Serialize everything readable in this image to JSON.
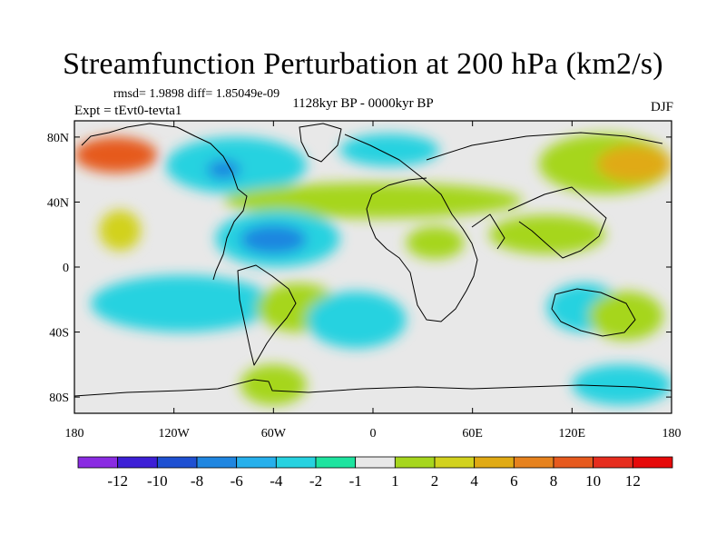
{
  "chart_data": {
    "type": "heatmap",
    "title": "Streamfunction Perturbation at 200 hPa (km2/s)",
    "stats": "rmsd= 1.9898 diff= 1.85049e-09",
    "experiment": "Expt = tEvt0-tevta1",
    "period": "1128kyr BP - 0000kyr BP",
    "season": "DJF",
    "xlim": [
      -180,
      180
    ],
    "ylim": [
      -90,
      90
    ],
    "x_ticks": [
      {
        "value": -180,
        "label": "180"
      },
      {
        "value": -120,
        "label": "120W"
      },
      {
        "value": -60,
        "label": "60W"
      },
      {
        "value": 0,
        "label": "0"
      },
      {
        "value": 60,
        "label": "60E"
      },
      {
        "value": 120,
        "label": "120E"
      },
      {
        "value": 180,
        "label": "180"
      }
    ],
    "y_ticks": [
      {
        "value": 80,
        "label": "80N"
      },
      {
        "value": 40,
        "label": "40N"
      },
      {
        "value": 0,
        "label": "0"
      },
      {
        "value": -40,
        "label": "40S"
      },
      {
        "value": -80,
        "label": "80S"
      }
    ],
    "colorbar": {
      "levels": [
        "-12",
        "-10",
        "-8",
        "-6",
        "-4",
        "-2",
        "-1",
        "1",
        "2",
        "4",
        "6",
        "8",
        "10",
        "12"
      ],
      "colors": [
        "#8a2be2",
        "#3d1fd6",
        "#1e50d2",
        "#1f86e0",
        "#27b0ec",
        "#27d2e0",
        "#1ee39f",
        "#e8e8e8",
        "#a6d61e",
        "#d2d21e",
        "#e0aa14",
        "#e6821e",
        "#e65a1e",
        "#e62d1e",
        "#e60a0a"
      ]
    },
    "regions": [
      {
        "level": 5,
        "lon": [
          -180,
          -130
        ],
        "lat": [
          58,
          80
        ],
        "value": 5
      },
      {
        "level": 2,
        "lon": [
          -125,
          -40
        ],
        "lat": [
          45,
          80
        ],
        "value": -2
      },
      {
        "level": 4,
        "lon": [
          -100,
          -80
        ],
        "lat": [
          54,
          66
        ],
        "value": -5
      },
      {
        "level": 2,
        "lon": [
          -20,
          40
        ],
        "lat": [
          62,
          82
        ],
        "value": -2
      },
      {
        "level": 1,
        "lon": [
          -90,
          90
        ],
        "lat": [
          30,
          52
        ],
        "value": 2
      },
      {
        "level": 1,
        "lon": [
          100,
          180
        ],
        "lat": [
          45,
          82
        ],
        "value": 2
      },
      {
        "level": 3,
        "lon": [
          135,
          180
        ],
        "lat": [
          52,
          75
        ],
        "value": 4
      },
      {
        "level": 2,
        "lon": [
          -165,
          -140
        ],
        "lat": [
          10,
          35
        ],
        "value": 3
      },
      {
        "level": 2,
        "lon": [
          -95,
          -20
        ],
        "lat": [
          0,
          35
        ],
        "value": -3
      },
      {
        "level": 4,
        "lon": [
          -80,
          -40
        ],
        "lat": [
          8,
          26
        ],
        "value": -5
      },
      {
        "level": 1,
        "lon": [
          20,
          55
        ],
        "lat": [
          5,
          25
        ],
        "value": 2
      },
      {
        "level": 1,
        "lon": [
          70,
          140
        ],
        "lat": [
          8,
          32
        ],
        "value": 2
      },
      {
        "level": 2,
        "lon": [
          -170,
          -60
        ],
        "lat": [
          -40,
          -5
        ],
        "value": -2
      },
      {
        "level": 1,
        "lon": [
          -70,
          -20
        ],
        "lat": [
          -40,
          -10
        ],
        "value": 3
      },
      {
        "level": 2,
        "lon": [
          -40,
          20
        ],
        "lat": [
          -50,
          -15
        ],
        "value": -2
      },
      {
        "level": 2,
        "lon": [
          105,
          150
        ],
        "lat": [
          -40,
          -10
        ],
        "value": -2
      },
      {
        "level": 1,
        "lon": [
          130,
          175
        ],
        "lat": [
          -45,
          -15
        ],
        "value": 2
      },
      {
        "level": 1,
        "lon": [
          -80,
          -40
        ],
        "lat": [
          -85,
          -60
        ],
        "value": 2
      },
      {
        "level": 2,
        "lon": [
          120,
          180
        ],
        "lat": [
          -85,
          -60
        ],
        "value": -2
      }
    ]
  }
}
